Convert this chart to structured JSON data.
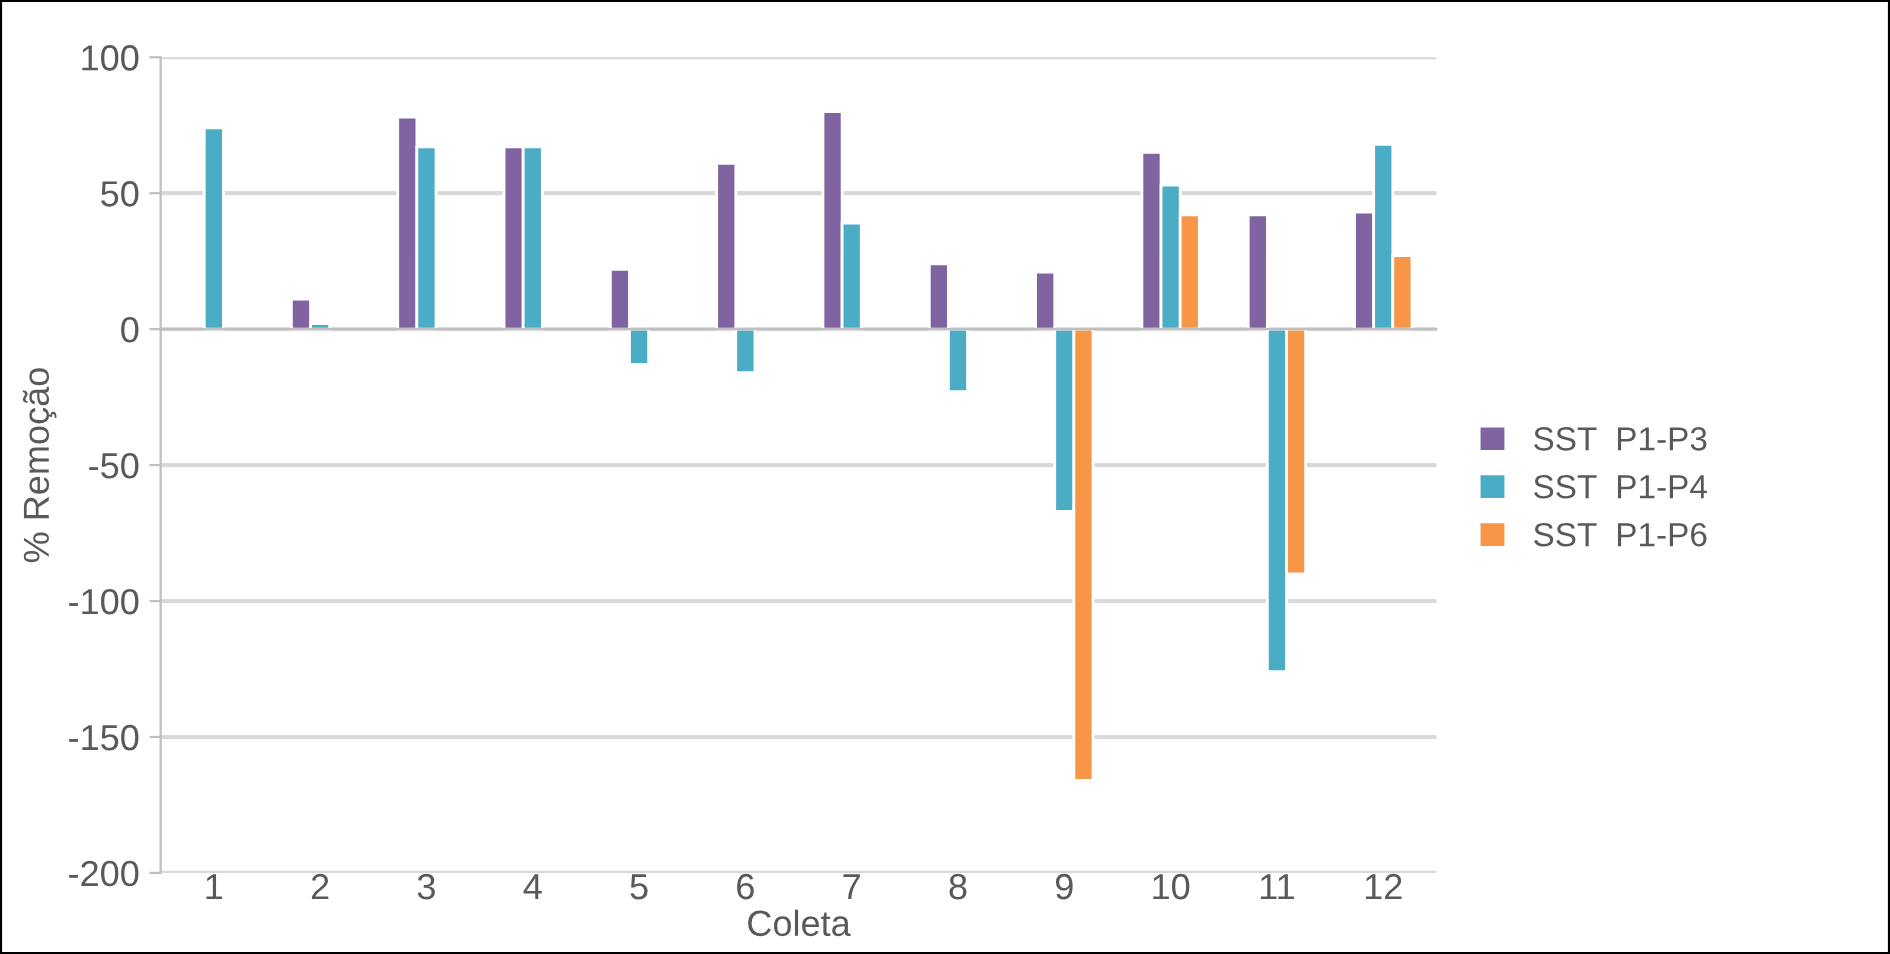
{
  "chart_data": {
    "type": "bar",
    "xlabel": "Coleta",
    "ylabel": "% Remoção",
    "categories": [
      "1",
      "2",
      "3",
      "4",
      "5",
      "6",
      "7",
      "8",
      "9",
      "10",
      "11",
      "12"
    ],
    "series": [
      {
        "name": "SST  P1-P3",
        "color": "#8064a2",
        "values": [
          null,
          11,
          78,
          67,
          22,
          61,
          80,
          24,
          21,
          65,
          42,
          43
        ]
      },
      {
        "name": "SST  P1-P4",
        "color": "#4bacc6",
        "values": [
          74,
          2,
          67,
          67,
          -13,
          -16,
          39,
          -23,
          -67,
          53,
          -126,
          68
        ]
      },
      {
        "name": "SST  P1-P6",
        "color": "#f79646",
        "values": [
          null,
          null,
          null,
          null,
          null,
          null,
          null,
          null,
          -166,
          42,
          -90,
          27
        ]
      }
    ],
    "ylim": [
      -200,
      100
    ],
    "yticks": [
      -200,
      -150,
      -100,
      -50,
      0,
      50,
      100
    ],
    "grid": "y",
    "legend": "right"
  }
}
